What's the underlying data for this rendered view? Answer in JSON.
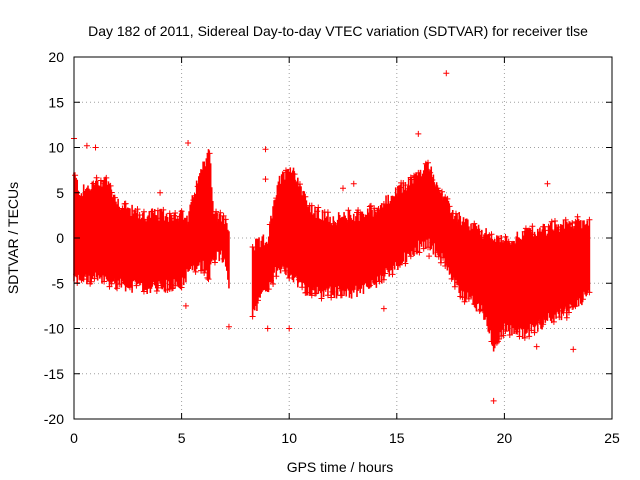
{
  "chart_data": {
    "type": "scatter",
    "title": "Day 182 of 2011, Sidereal Day-to-day VTEC variation (SDTVAR) for receiver tlse",
    "xlabel": "GPS time / hours",
    "ylabel": "SDTVAR / TECUs",
    "xlim": [
      0,
      25
    ],
    "ylim": [
      -20,
      20
    ],
    "xticks": [
      0,
      5,
      10,
      15,
      20,
      25
    ],
    "yticks": [
      -20,
      -15,
      -10,
      -5,
      0,
      5,
      10,
      15,
      20
    ],
    "grid": true,
    "marker": "+",
    "color": "#ff0000",
    "series": [
      {
        "name": "SDTVAR",
        "envelope_upper": [
          [
            0.0,
            7
          ],
          [
            0.3,
            5
          ],
          [
            1.0,
            6
          ],
          [
            1.5,
            6.5
          ],
          [
            2.0,
            4
          ],
          [
            3.0,
            2.5
          ],
          [
            4.0,
            2.5
          ],
          [
            5.0,
            2.5
          ],
          [
            5.3,
            2
          ],
          [
            5.6,
            5
          ],
          [
            6.0,
            8
          ],
          [
            6.3,
            10
          ],
          [
            6.5,
            2.5
          ],
          [
            7.0,
            2
          ],
          [
            7.2,
            1
          ]
        ],
        "envelope_lower": [
          [
            0.0,
            -4.5
          ],
          [
            1.0,
            -4.5
          ],
          [
            2.0,
            -5
          ],
          [
            3.0,
            -5.5
          ],
          [
            4.0,
            -5.5
          ],
          [
            5.0,
            -5
          ],
          [
            5.5,
            -3
          ],
          [
            6.0,
            -3
          ],
          [
            6.3,
            -4
          ],
          [
            6.5,
            -2
          ],
          [
            7.0,
            -2
          ],
          [
            7.2,
            -5
          ]
        ],
        "envelope2_upper": [
          [
            8.3,
            -1
          ],
          [
            8.7,
            -0.5
          ],
          [
            9.0,
            0
          ],
          [
            9.5,
            6
          ],
          [
            10.0,
            8
          ],
          [
            10.5,
            6
          ],
          [
            11.0,
            3
          ],
          [
            12.0,
            2
          ],
          [
            13.0,
            2.5
          ],
          [
            14.0,
            3
          ],
          [
            15.0,
            5
          ],
          [
            16.0,
            7
          ],
          [
            16.5,
            8
          ],
          [
            17.0,
            5
          ],
          [
            17.5,
            3
          ],
          [
            18.0,
            2
          ],
          [
            19.0,
            0.5
          ],
          [
            20.0,
            -0.5
          ],
          [
            20.5,
            0
          ],
          [
            21.0,
            0.5
          ],
          [
            22.0,
            1
          ],
          [
            23.0,
            1.5
          ],
          [
            24.0,
            2
          ]
        ],
        "envelope2_lower": [
          [
            8.3,
            -9
          ],
          [
            8.7,
            -6
          ],
          [
            9.0,
            -6
          ],
          [
            9.5,
            -3
          ],
          [
            10.0,
            -4
          ],
          [
            11.0,
            -6
          ],
          [
            12.0,
            -6
          ],
          [
            13.0,
            -6
          ],
          [
            14.0,
            -5
          ],
          [
            15.0,
            -3
          ],
          [
            16.0,
            -1
          ],
          [
            16.5,
            -0.5
          ],
          [
            17.0,
            -2
          ],
          [
            17.5,
            -4
          ],
          [
            18.0,
            -6
          ],
          [
            19.0,
            -8
          ],
          [
            19.5,
            -12
          ],
          [
            20.0,
            -10
          ],
          [
            21.0,
            -10.5
          ],
          [
            22.0,
            -9
          ],
          [
            23.0,
            -8
          ],
          [
            24.0,
            -6
          ]
        ],
        "outliers": [
          [
            0.0,
            11
          ],
          [
            0.6,
            10.2
          ],
          [
            1.0,
            10
          ],
          [
            4.0,
            5
          ],
          [
            5.2,
            -7.5
          ],
          [
            5.3,
            10.5
          ],
          [
            7.2,
            -9.8
          ],
          [
            8.9,
            9.8
          ],
          [
            8.9,
            6.5
          ],
          [
            9.0,
            -10
          ],
          [
            10.0,
            -10
          ],
          [
            12.5,
            5.5
          ],
          [
            13.0,
            6
          ],
          [
            14.4,
            -7.8
          ],
          [
            16.0,
            11.5
          ],
          [
            16.5,
            -2
          ],
          [
            17.3,
            18.2
          ],
          [
            19.5,
            -18
          ],
          [
            21.5,
            -12
          ],
          [
            22.0,
            6
          ],
          [
            23.2,
            -12.3
          ]
        ]
      }
    ]
  }
}
